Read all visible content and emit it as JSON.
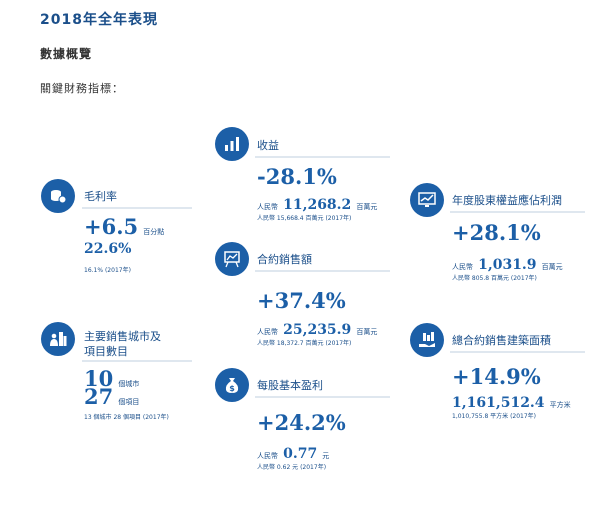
{
  "header": {
    "title": "2018年全年表現",
    "subtitle": "數據概覽",
    "lead": "關鍵財務指標："
  },
  "gross_margin": {
    "icon": "coins-icon",
    "label": "毛利率",
    "change": "+6.5",
    "change_unit": "百分點",
    "value": "22.6%",
    "prev": "16.1% (2017年)"
  },
  "revenue": {
    "icon": "bar-chart-icon",
    "label": "收益",
    "change": "-28.1%",
    "prefix": "人民幣",
    "value": "11,268.2",
    "unit": "百萬元",
    "prev": "人民幣 15,668.4 百萬元 (2017年)"
  },
  "profit": {
    "icon": "line-chart-monitor-icon",
    "label": "年度股東權益應佔利潤",
    "change": "+28.1%",
    "prefix": "人民幣",
    "value": "1,031.9",
    "unit": "百萬元",
    "prev": "人民幣 805.8 百萬元 (2017年)"
  },
  "contract_sales": {
    "icon": "presentation-board-icon",
    "label": "合約銷售額",
    "change": "+37.4%",
    "prefix": "人民幣",
    "value": "25,235.9",
    "unit": "百萬元",
    "prev": "人民幣 18,372.7 百萬元 (2017年)"
  },
  "cities": {
    "icon": "people-buildings-icon",
    "label_line1": "主要銷售城市及",
    "label_line2": "項目數目",
    "city_count": "10",
    "city_unit": "個城市",
    "project_count": "27",
    "project_unit": "個項目",
    "prev": "13 個城市 28 個項目 (2017年)"
  },
  "gfa": {
    "icon": "hand-buildings-icon",
    "label": "總合約銷售建築面積",
    "change": "+14.9%",
    "value": "1,161,512.4",
    "unit": "平方米",
    "prev": "1,010,755.8 平方米 (2017年)"
  },
  "eps": {
    "icon": "money-bag-icon",
    "label": "每股基本盈利",
    "change": "+24.2%",
    "prefix": "人民幣",
    "value": "0.77",
    "unit": "元",
    "prev": "人民幣 0.62 元 (2017年)"
  }
}
